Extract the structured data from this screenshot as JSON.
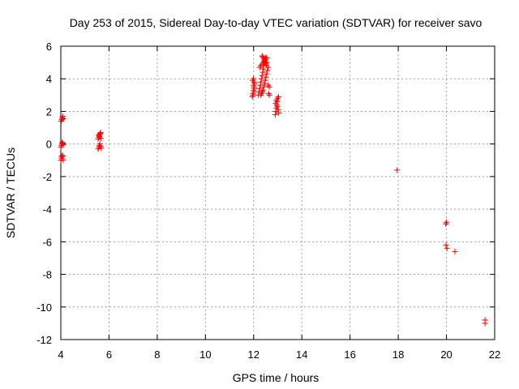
{
  "chart_data": {
    "type": "scatter",
    "title": "Day 253 of 2015, Sidereal Day-to-day VTEC variation (SDTVAR) for receiver savo",
    "xlabel": "GPS time / hours",
    "ylabel": "SDTVAR / TECUs",
    "xlim": [
      4,
      22
    ],
    "ylim": [
      -12,
      6
    ],
    "xticks": [
      4,
      6,
      8,
      10,
      12,
      14,
      16,
      18,
      20,
      22
    ],
    "yticks": [
      -12,
      -10,
      -8,
      -6,
      -4,
      -2,
      0,
      2,
      4,
      6
    ],
    "xtick_labels": [
      "4",
      "6",
      "8",
      "10",
      "12",
      "14",
      "16",
      "18",
      "20",
      "22"
    ],
    "ytick_labels": [
      "-12",
      "-10",
      "-8",
      "-6",
      "-4",
      "-2",
      "0",
      "2",
      "4",
      "6"
    ],
    "grid": true,
    "marker": "+",
    "series": [
      {
        "name": "SDTVAR",
        "color": "#ff0000",
        "x": [
          4.0,
          4.02,
          4.04,
          4.06,
          4.08,
          4.1,
          4.0,
          4.02,
          4.04,
          4.06,
          4.08,
          4.1,
          4.02,
          4.04,
          4.06,
          4.08,
          4.1,
          5.55,
          5.58,
          5.6,
          5.62,
          5.65,
          5.68,
          5.55,
          5.58,
          5.6,
          5.62,
          5.65,
          5.57,
          5.6,
          5.63,
          5.66,
          11.95,
          11.98,
          12.0,
          12.02,
          12.04,
          11.96,
          11.99,
          12.01,
          12.03,
          11.97,
          12.0,
          12.02,
          12.2,
          12.22,
          12.25,
          12.28,
          12.3,
          12.32,
          12.35,
          12.38,
          12.4,
          12.42,
          12.45,
          12.48,
          12.5,
          12.52,
          12.55,
          12.3,
          12.33,
          12.36,
          12.39,
          12.42,
          12.45,
          12.48,
          12.51,
          12.54,
          12.57,
          12.6,
          12.62,
          12.65,
          12.25,
          12.3,
          12.35,
          12.4,
          12.45,
          12.5,
          12.55,
          12.6,
          12.65,
          12.35,
          12.38,
          12.41,
          12.44,
          12.47,
          12.5,
          12.53,
          12.9,
          12.92,
          12.94,
          12.96,
          12.98,
          13.0,
          13.02,
          13.04,
          12.91,
          12.95,
          12.99,
          13.03,
          17.95,
          19.97,
          20.0,
          19.98,
          20.02,
          20.35,
          21.6,
          21.6
        ],
        "y": [
          -1.0,
          -0.8,
          -0.9,
          -0.7,
          -0.75,
          -1.0,
          -0.2,
          -0.1,
          0.0,
          0.1,
          0.05,
          -0.05,
          1.4,
          1.5,
          1.6,
          1.7,
          1.55,
          -0.3,
          -0.2,
          -0.1,
          0.0,
          -0.15,
          -0.25,
          0.3,
          0.4,
          0.5,
          0.6,
          0.7,
          0.55,
          0.45,
          0.65,
          0.35,
          2.9,
          3.1,
          3.3,
          3.5,
          3.7,
          3.9,
          4.0,
          3.2,
          3.4,
          3.0,
          3.6,
          3.8,
          3.0,
          3.2,
          3.4,
          3.6,
          3.8,
          4.0,
          4.2,
          4.4,
          4.6,
          4.8,
          5.0,
          5.2,
          5.3,
          5.2,
          5.0,
          3.0,
          3.1,
          3.2,
          3.3,
          3.5,
          3.7,
          3.9,
          4.1,
          4.3,
          4.5,
          4.7,
          3.1,
          3.0,
          4.7,
          4.8,
          4.9,
          5.0,
          5.1,
          5.2,
          5.3,
          3.6,
          3.5,
          5.4,
          5.35,
          5.25,
          5.15,
          5.05,
          4.95,
          4.85,
          1.8,
          2.0,
          2.2,
          2.4,
          2.6,
          2.8,
          2.1,
          1.9,
          2.5,
          2.7,
          2.3,
          2.9,
          -1.6,
          -4.9,
          -4.8,
          -6.2,
          -6.4,
          -6.6,
          -10.8,
          -11.0
        ]
      }
    ]
  }
}
